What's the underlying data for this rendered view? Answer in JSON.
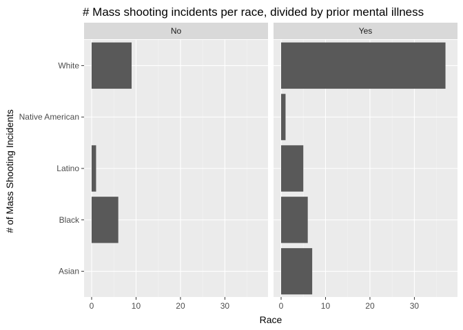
{
  "chart_data": {
    "type": "bar",
    "orientation": "horizontal",
    "title": "# Mass shooting incidents per race, divided by prior mental illness",
    "xlabel": "Race",
    "ylabel": "# of Mass Shooting Incidents",
    "categories": [
      "White",
      "Native American",
      "Latino",
      "Black",
      "Asian"
    ],
    "xlim": [
      0,
      38
    ],
    "xticks": [
      0,
      10,
      20,
      30
    ],
    "grid": true,
    "bar_color": "#595959",
    "panel_bg": "#ebebeb",
    "strip_bg": "#d9d9d9",
    "panels": [
      {
        "label": "No",
        "values": [
          9,
          0,
          1,
          6,
          0
        ]
      },
      {
        "label": "Yes",
        "values": [
          37,
          1,
          5,
          6,
          7
        ]
      }
    ]
  }
}
